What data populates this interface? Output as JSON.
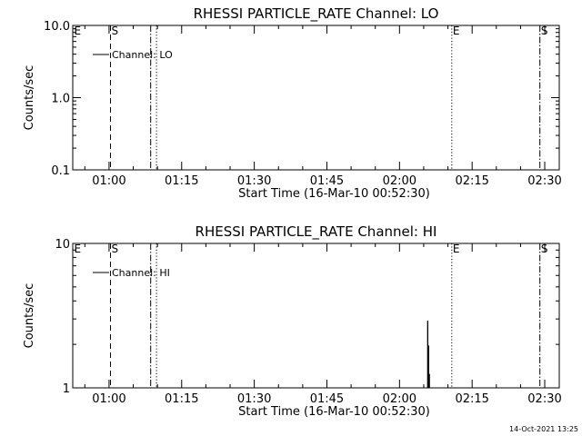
{
  "timestamp": "14-Oct-2021 13:25",
  "chart_data": [
    {
      "type": "line",
      "title": "RHESSI PARTICLE_RATE Channel: LO",
      "xlabel": "Start Time (16-Mar-10 00:52:30)",
      "ylabel": "Counts/sec",
      "yscale": "log",
      "ylim": [
        0.1,
        10
      ],
      "xlim_minutes": [
        52.5,
        153
      ],
      "x_ticks": [
        {
          "label": "01:00",
          "min": 60
        },
        {
          "label": "01:15",
          "min": 75
        },
        {
          "label": "01:30",
          "min": 90
        },
        {
          "label": "01:45",
          "min": 105
        },
        {
          "label": "02:00",
          "min": 120
        },
        {
          "label": "02:15",
          "min": 135
        },
        {
          "label": "02:30",
          "min": 150
        }
      ],
      "y_ticks": [
        {
          "label": "10.0",
          "value": 10
        },
        {
          "label": "1.0",
          "value": 1
        },
        {
          "label": "0.1",
          "value": 0.1
        }
      ],
      "legend": {
        "label": "Channel: LO",
        "position": "top-left"
      },
      "markers": [
        {
          "label": "E",
          "min": 52.6,
          "style": "none"
        },
        {
          "label": "S",
          "min": 60.3,
          "style": "dashed"
        },
        {
          "label": "",
          "min": 68.6,
          "style": "dashdot"
        },
        {
          "label": "",
          "min": 69.8,
          "style": "dotted"
        },
        {
          "label": "E",
          "min": 130.8,
          "style": "dotted"
        },
        {
          "label": "S",
          "min": 149.0,
          "style": "dashdot"
        }
      ],
      "series": [
        {
          "name": "Channel: LO",
          "x": [],
          "y": []
        }
      ]
    },
    {
      "type": "line",
      "title": "RHESSI PARTICLE_RATE Channel: HI",
      "xlabel": "Start Time (16-Mar-10 00:52:30)",
      "ylabel": "Counts/sec",
      "yscale": "log",
      "ylim": [
        1,
        10
      ],
      "xlim_minutes": [
        52.5,
        153
      ],
      "x_ticks": [
        {
          "label": "01:00",
          "min": 60
        },
        {
          "label": "01:15",
          "min": 75
        },
        {
          "label": "01:30",
          "min": 90
        },
        {
          "label": "01:45",
          "min": 105
        },
        {
          "label": "02:00",
          "min": 120
        },
        {
          "label": "02:15",
          "min": 135
        },
        {
          "label": "02:30",
          "min": 150
        }
      ],
      "y_ticks": [
        {
          "label": "10",
          "value": 10
        },
        {
          "label": "1",
          "value": 1
        }
      ],
      "legend": {
        "label": "Channel: HI",
        "position": "top-left"
      },
      "markers": [
        {
          "label": "E",
          "min": 52.6,
          "style": "none"
        },
        {
          "label": "S",
          "min": 60.3,
          "style": "dashed"
        },
        {
          "label": "",
          "min": 68.6,
          "style": "dashdot"
        },
        {
          "label": "",
          "min": 69.8,
          "style": "dotted"
        },
        {
          "label": "E",
          "min": 130.8,
          "style": "dotted"
        },
        {
          "label": "S",
          "min": 149.0,
          "style": "dashdot"
        }
      ],
      "series": [
        {
          "name": "Channel: HI",
          "x": [
            125.8,
            125.8,
            125.85,
            125.85,
            126.0,
            126.0,
            126.05,
            126.05,
            126.2,
            126.2
          ],
          "y": [
            1,
            2.9,
            2.9,
            1,
            1,
            1.95,
            1.95,
            1,
            1,
            1.25
          ]
        }
      ]
    }
  ]
}
